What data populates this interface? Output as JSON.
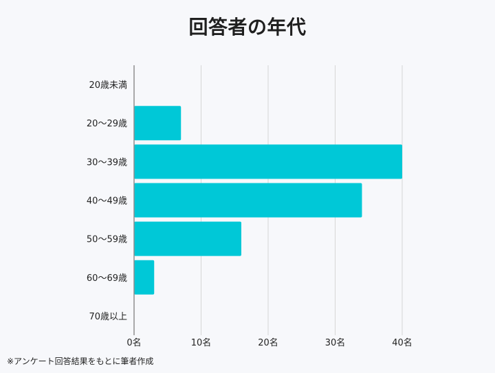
{
  "title": "回答者の年代",
  "footnote": "※アンケート回答結果をもとに筆者作成",
  "colors": {
    "bar": "#00c8d7",
    "grid": "#d6d6d6",
    "axis": "#8e8e8e",
    "text": "#222222",
    "background": "#f7f8fb"
  },
  "chart_data": {
    "type": "bar",
    "orientation": "horizontal",
    "title": "回答者の年代",
    "xlabel": "",
    "ylabel": "",
    "categories": [
      "20歳未満",
      "20〜29歳",
      "30〜39歳",
      "40〜49歳",
      "50〜59歳",
      "60〜69歳",
      "70歳以上"
    ],
    "values": [
      0,
      7,
      40,
      34,
      16,
      3,
      0
    ],
    "xlim": [
      0,
      40
    ],
    "x_ticks": [
      0,
      10,
      20,
      30,
      40
    ],
    "x_tick_labels": [
      "0名",
      "10名",
      "20名",
      "30名",
      "40名"
    ],
    "grid": true,
    "legend": "none"
  }
}
